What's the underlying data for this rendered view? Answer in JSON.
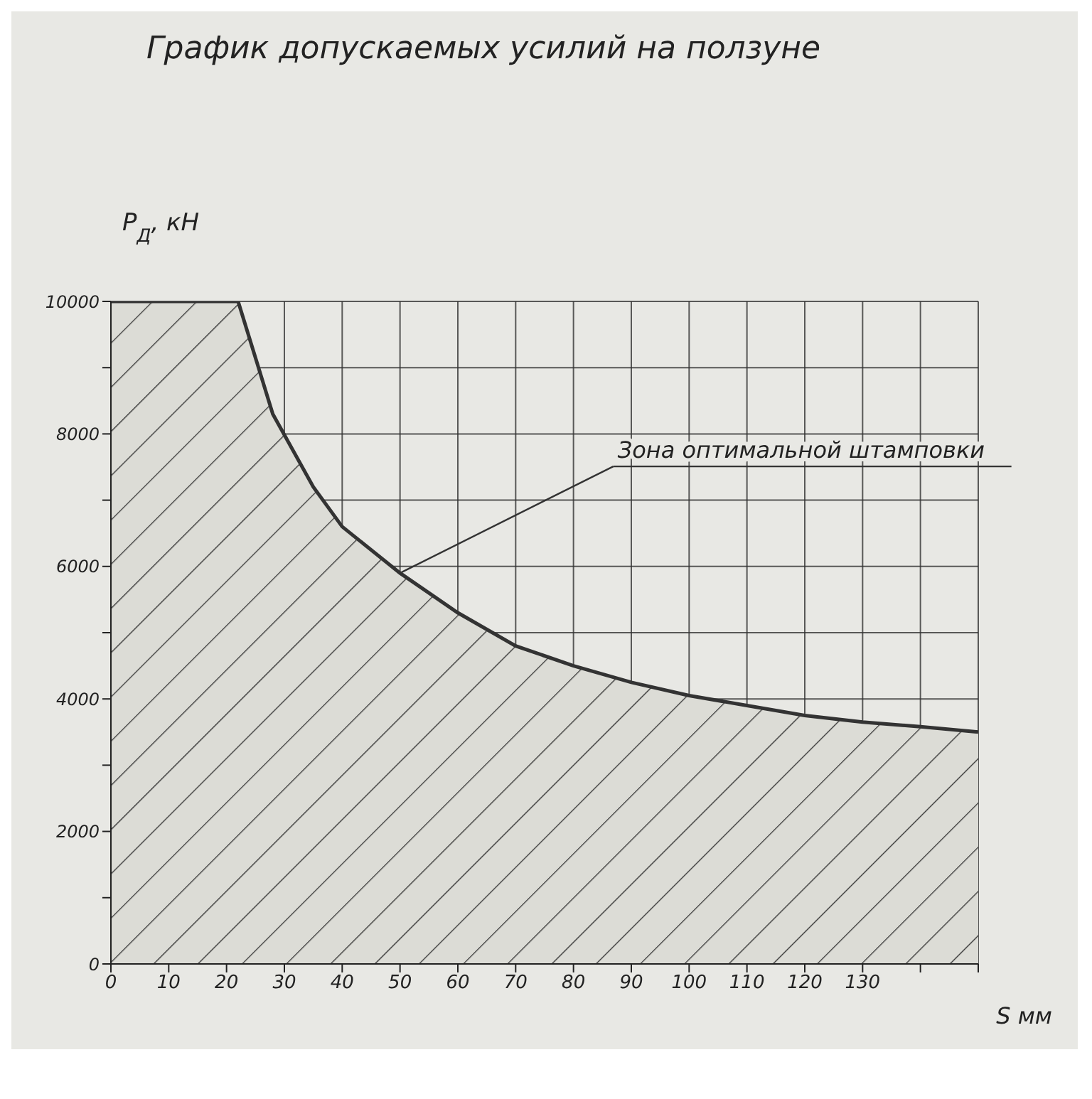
{
  "chart_data": {
    "type": "area",
    "title": "График допускаемых усилий на ползуне",
    "xlabel": "S мм",
    "ylabel": "P$_{Д}$, кН",
    "x": [
      0,
      22,
      28,
      35,
      40,
      50,
      60,
      70,
      80,
      90,
      100,
      110,
      120,
      130,
      140,
      150
    ],
    "series": [
      {
        "color": "#333333",
        "values": [
          10000,
          10000,
          8300,
          7200,
          6600,
          5900,
          5300,
          4800,
          4500,
          4250,
          4050,
          3900,
          3750,
          3650,
          3580,
          3500
        ]
      }
    ],
    "xlim": [
      0,
      150
    ],
    "xticks": [
      0,
      10,
      20,
      30,
      40,
      50,
      60,
      70,
      80,
      90,
      100,
      110,
      120,
      130,
      {
        "value": 140,
        "label": null
      },
      {
        "value": 150,
        "label": null
      }
    ],
    "ylim": [
      0,
      10000
    ],
    "yticks": [
      0,
      {
        "value": 1000,
        "label": null
      },
      2000,
      {
        "value": 3000,
        "label": null
      },
      4000,
      {
        "value": 5000,
        "label": null
      },
      6000,
      {
        "value": 7000,
        "label": null
      },
      8000,
      {
        "value": 9000,
        "label": null
      },
      10000
    ],
    "grid": true,
    "legend": false,
    "annotations": [
      {
        "text": "Зона оптимальной штамповки",
        "x": 50,
        "y": 5900
      }
    ]
  }
}
